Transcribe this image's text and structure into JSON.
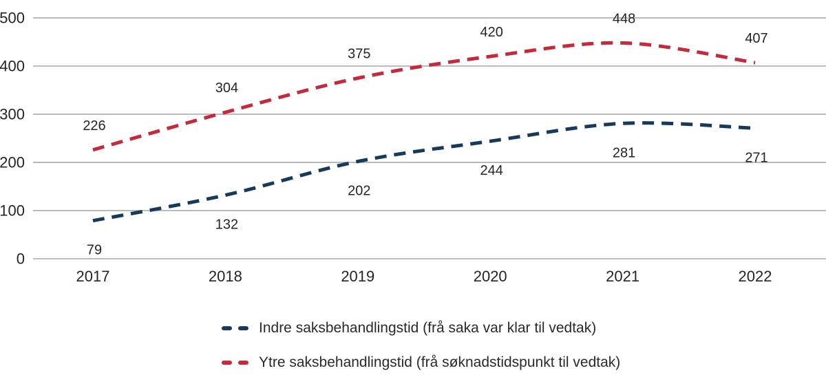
{
  "chart_data": {
    "type": "line",
    "title": "",
    "xlabel": "",
    "ylabel": "",
    "categories": [
      "2017",
      "2018",
      "2019",
      "2020",
      "2021",
      "2022"
    ],
    "series": [
      {
        "name": "Indre saksbehandlingstid (frå saka var klar til vedtak)",
        "values": [
          79,
          132,
          202,
          244,
          281,
          271
        ],
        "color": "#17395c",
        "line_style": "dashed",
        "label_position": "below"
      },
      {
        "name": "Ytre saksbehandlingstid (frå søknadstidspunkt til vedtak)",
        "values": [
          226,
          304,
          375,
          420,
          448,
          407
        ],
        "color": "#c42a3c",
        "line_style": "dashed",
        "label_position": "above"
      }
    ],
    "ylim": [
      0,
      500
    ],
    "y_ticks": [
      0,
      100,
      200,
      300,
      400,
      500
    ],
    "grid": true,
    "legend_position": "bottom"
  },
  "style": {
    "grid_color": "#a3a3a3",
    "tick_text_color": "#262324",
    "label_text_color": "#262324",
    "background": "#ffffff"
  }
}
